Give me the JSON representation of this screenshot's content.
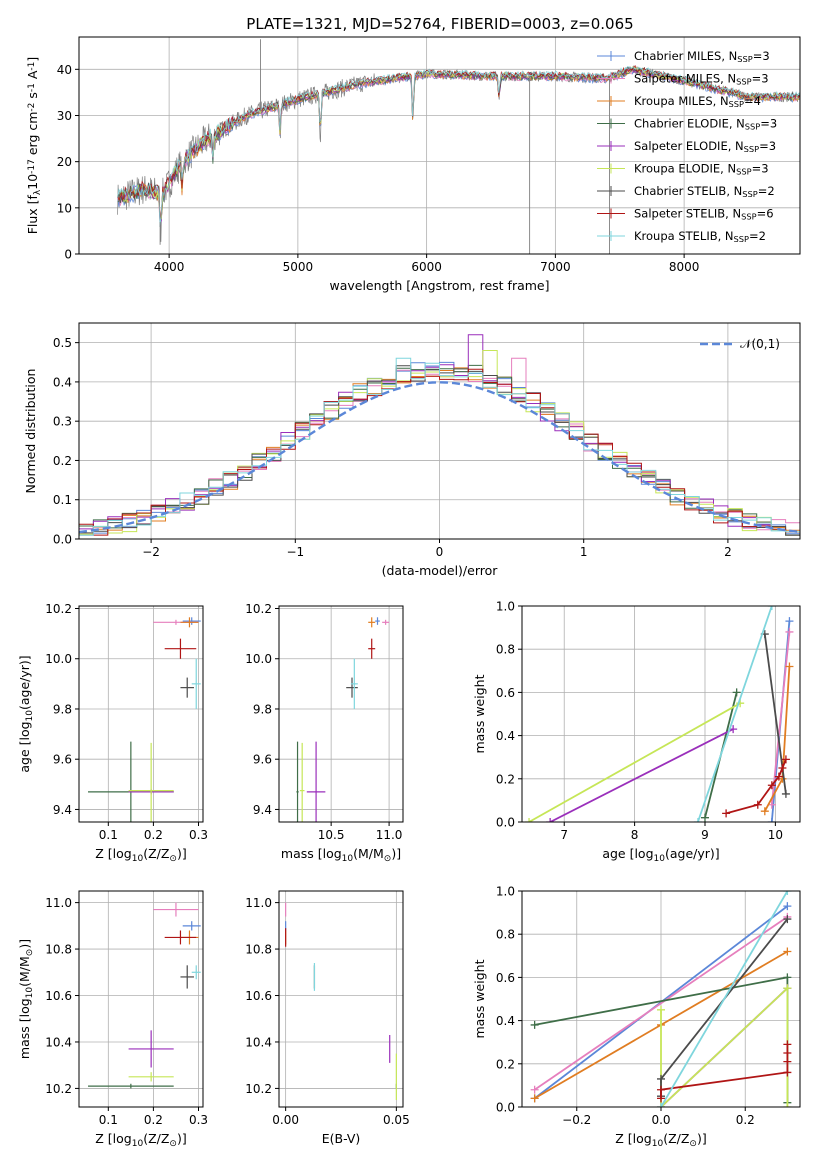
{
  "figure_title": "PLATE=1321, MJD=52764, FIBERID=0003, z=0.065",
  "colors": {
    "Chabrier MILES": "#5b87d8",
    "Salpeter MILES": "#e67fbd",
    "Kroupa MILES": "#e07d22",
    "Chabrier ELODIE": "#3f6e48",
    "Salpeter ELODIE": "#9a2fbb",
    "Kroupa ELODIE": "#c6e657",
    "Chabrier STELIB": "#4b4b4b",
    "Salpeter STELIB": "#b01515",
    "Kroupa STELIB": "#7fd6dd",
    "normal": "#5b87d8",
    "spectrum_gray": "#7f7f7f"
  },
  "chart_data": [
    {
      "id": "spectrum",
      "type": "line",
      "xlabel": "wavelength [Angstrom, rest frame]",
      "ylabel": "Flux [f$_\\lambda$10$^{-17}$ erg cm$^{-2}$ s$^{-1}$ A$^{-1}$]",
      "xlim": [
        3300,
        8900
      ],
      "ylim": [
        0,
        47
      ],
      "xticks": [
        4000,
        5000,
        6000,
        7000,
        8000
      ],
      "yticks": [
        0,
        10,
        20,
        30,
        40
      ],
      "legend_position": "top-right",
      "legend": [
        {
          "model": "Chabrier MILES",
          "label": "Chabrier MILES, N",
          "sub": "SSP",
          "n": "=3"
        },
        {
          "model": "Salpeter MILES",
          "label": "Salpeter MILES, N",
          "sub": "SSP",
          "n": "=3"
        },
        {
          "model": "Kroupa MILES",
          "label": "Kroupa MILES, N",
          "sub": "SSP",
          "n": "=4"
        },
        {
          "model": "Chabrier ELODIE",
          "label": "Chabrier ELODIE, N",
          "sub": "SSP",
          "n": "=3"
        },
        {
          "model": "Salpeter ELODIE",
          "label": "Salpeter ELODIE, N",
          "sub": "SSP",
          "n": "=3"
        },
        {
          "model": "Kroupa ELODIE",
          "label": "Kroupa ELODIE, N",
          "sub": "SSP",
          "n": "=3"
        },
        {
          "model": "Chabrier STELIB",
          "label": "Chabrier STELIB, N",
          "sub": "SSP",
          "n": "=2"
        },
        {
          "model": "Salpeter STELIB",
          "label": "Salpeter STELIB, N",
          "sub": "SSP",
          "n": "=6"
        },
        {
          "model": "Kroupa STELIB",
          "label": "Kroupa STELIB, N",
          "sub": "SSP",
          "n": "=2"
        }
      ],
      "continuum": {
        "x": [
          3600,
          3800,
          3950,
          4100,
          4300,
          4600,
          5000,
          5500,
          6000,
          6500,
          7000,
          7400,
          7600,
          8000,
          8500
        ],
        "y": [
          12,
          14,
          13,
          20,
          25,
          30,
          33.5,
          37,
          39,
          38.5,
          38.5,
          38,
          40,
          37.5,
          34
        ]
      },
      "absorption_lines": [
        {
          "x": 3934,
          "depth": 8
        },
        {
          "x": 4102,
          "depth": 6
        },
        {
          "x": 4340,
          "depth": 5
        },
        {
          "x": 4861,
          "depth": 6
        },
        {
          "x": 5175,
          "depth": 9
        },
        {
          "x": 5893,
          "depth": 10
        },
        {
          "x": 6563,
          "depth": 5
        }
      ],
      "spikes": [
        {
          "x": 3930,
          "y": 2
        },
        {
          "x": 4710,
          "y": 46.5
        },
        {
          "x": 6800,
          "y": 0
        },
        {
          "x": 7420,
          "y": 0
        }
      ]
    },
    {
      "id": "residuals",
      "type": "step",
      "xlabel": "(data-model)/error",
      "ylabel": "Normed distribution",
      "xlim": [
        -2.5,
        2.5
      ],
      "ylim": [
        0,
        0.55
      ],
      "xticks": [
        -2,
        -1,
        0,
        1,
        2
      ],
      "yticks": [
        0.0,
        0.1,
        0.2,
        0.3,
        0.4,
        0.5
      ],
      "legend_position": "top-right",
      "gaussian_label": "$\\mathcal{N}(0,1)$",
      "bin_width": 0.1,
      "peak_bin": {
        "x": 0.2,
        "y": 0.52,
        "model": "Salpeter ELODIE"
      },
      "highest_bins": [
        {
          "x": 0.3,
          "y": 0.48,
          "model": "Kroupa ELODIE"
        },
        {
          "x": 0.5,
          "y": 0.46,
          "model": "Salpeter MILES"
        },
        {
          "x": -0.3,
          "y": 0.46,
          "model": "Kroupa STELIB"
        },
        {
          "x": -0.8,
          "y": 0.35,
          "model": "Salpeter STELIB"
        }
      ]
    },
    {
      "id": "age_vs_Z",
      "type": "scatter",
      "xlabel": "Z [log$_{10}$(Z/Z$_\\odot$)]",
      "ylabel": "age  [log$_{10}$(age/yr)]",
      "xlim": [
        0.035,
        0.31
      ],
      "ylim": [
        9.35,
        10.21
      ],
      "xticks": [
        0.1,
        0.2,
        0.3
      ],
      "yticks": [
        9.4,
        9.6,
        9.8,
        10.0,
        10.2
      ],
      "points": [
        {
          "model": "Chabrier MILES",
          "x": 0.285,
          "y": 10.15,
          "xerr": 0.02,
          "yerr": 0.015
        },
        {
          "model": "Salpeter MILES",
          "x": 0.25,
          "y": 10.145,
          "xerr": 0.05,
          "yerr": 0.01
        },
        {
          "model": "Kroupa MILES",
          "x": 0.28,
          "y": 10.145,
          "xerr": 0.02,
          "yerr": 0.02
        },
        {
          "model": "Chabrier ELODIE",
          "x": 0.15,
          "y": 9.47,
          "xerr": 0.095,
          "yerr": 0.2
        },
        {
          "model": "Salpeter ELODIE",
          "x": 0.195,
          "y": 9.47,
          "xerr": 0.05,
          "yerr": 0.01
        },
        {
          "model": "Kroupa ELODIE",
          "x": 0.195,
          "y": 9.475,
          "xerr": 0.05,
          "yerr": 0.19
        },
        {
          "model": "Chabrier STELIB",
          "x": 0.275,
          "y": 9.885,
          "xerr": 0.015,
          "yerr": 0.04
        },
        {
          "model": "Salpeter STELIB",
          "x": 0.26,
          "y": 10.04,
          "xerr": 0.035,
          "yerr": 0.04
        },
        {
          "model": "Kroupa STELIB",
          "x": 0.295,
          "y": 9.9,
          "xerr": 0.01,
          "yerr": 0.1
        }
      ]
    },
    {
      "id": "age_vs_mass",
      "type": "scatter",
      "xlabel": "mass [log$_{10}$(M/M$_\\odot$)]",
      "ylabel": "",
      "xlim": [
        10.05,
        11.12
      ],
      "ylim": [
        9.35,
        10.21
      ],
      "xticks": [
        10.0,
        10.5,
        11.0
      ],
      "yticks": [
        9.4,
        9.6,
        9.8,
        10.0,
        10.2
      ],
      "points": [
        {
          "model": "Chabrier MILES",
          "x": 10.9,
          "y": 10.15,
          "xerr": 0.02,
          "yerr": 0.015
        },
        {
          "model": "Salpeter MILES",
          "x": 10.97,
          "y": 10.145,
          "xerr": 0.03,
          "yerr": 0.01
        },
        {
          "model": "Kroupa MILES",
          "x": 10.85,
          "y": 10.145,
          "xerr": 0.03,
          "yerr": 0.02
        },
        {
          "model": "Chabrier ELODIE",
          "x": 10.21,
          "y": 9.47,
          "xerr": 0.01,
          "yerr": 0.2
        },
        {
          "model": "Salpeter ELODIE",
          "x": 10.37,
          "y": 9.47,
          "xerr": 0.08,
          "yerr": 0.2
        },
        {
          "model": "Kroupa ELODIE",
          "x": 10.25,
          "y": 9.475,
          "xerr": 0.02,
          "yerr": 0.19
        },
        {
          "model": "Chabrier STELIB",
          "x": 10.68,
          "y": 9.885,
          "xerr": 0.05,
          "yerr": 0.04
        },
        {
          "model": "Salpeter STELIB",
          "x": 10.85,
          "y": 10.04,
          "xerr": 0.03,
          "yerr": 0.04
        },
        {
          "model": "Kroupa STELIB",
          "x": 10.7,
          "y": 9.9,
          "xerr": 0.03,
          "yerr": 0.1
        }
      ]
    },
    {
      "id": "weight_vs_age",
      "type": "line",
      "xlabel": "age  [log$_{10}$(age/yr)]",
      "ylabel": "mass weight",
      "xlim": [
        6.4,
        10.35
      ],
      "ylim": [
        0,
        1.0
      ],
      "xticks": [
        7,
        8,
        9,
        10
      ],
      "yticks": [
        0.0,
        0.2,
        0.4,
        0.6,
        0.8,
        1.0
      ],
      "series": [
        {
          "model": "Chabrier MILES",
          "x": [
            9.95,
            10.2
          ],
          "y": [
            0.0,
            0.93
          ]
        },
        {
          "model": "Salpeter MILES",
          "x": [
            9.95,
            10.2
          ],
          "y": [
            0.08,
            0.88
          ]
        },
        {
          "model": "Kroupa MILES",
          "x": [
            9.85,
            10.1,
            10.2
          ],
          "y": [
            0.05,
            0.2,
            0.72
          ]
        },
        {
          "model": "Chabrier ELODIE",
          "x": [
            9.0,
            9.45
          ],
          "y": [
            0.02,
            0.6
          ]
        },
        {
          "model": "Salpeter ELODIE",
          "x": [
            6.8,
            9.4
          ],
          "y": [
            0.0,
            0.43
          ]
        },
        {
          "model": "Kroupa ELODIE",
          "x": [
            6.5,
            9.5
          ],
          "y": [
            0.0,
            0.55
          ]
        },
        {
          "model": "Chabrier STELIB",
          "x": [
            9.85,
            10.15
          ],
          "y": [
            0.87,
            0.13
          ]
        },
        {
          "model": "Salpeter STELIB",
          "x": [
            9.3,
            9.75,
            9.95,
            10.05,
            10.1,
            10.15
          ],
          "y": [
            0.04,
            0.08,
            0.17,
            0.21,
            0.25,
            0.29
          ]
        },
        {
          "model": "Kroupa STELIB",
          "x": [
            8.9,
            9.95
          ],
          "y": [
            0.0,
            1.0
          ]
        }
      ]
    },
    {
      "id": "mass_vs_Z",
      "type": "scatter",
      "xlabel": "Z [log$_{10}$(Z/Z$_\\odot$)]",
      "ylabel": "mass [log$_{10}$(M/M$_\\odot$)]",
      "xlim": [
        0.035,
        0.31
      ],
      "ylim": [
        10.12,
        11.05
      ],
      "xticks": [
        0.1,
        0.2,
        0.3
      ],
      "yticks": [
        10.2,
        10.4,
        10.6,
        10.8,
        11.0
      ],
      "points": [
        {
          "model": "Chabrier MILES",
          "x": 0.285,
          "y": 10.9,
          "xerr": 0.02,
          "yerr": 0.02
        },
        {
          "model": "Salpeter MILES",
          "x": 0.25,
          "y": 10.97,
          "xerr": 0.05,
          "yerr": 0.03
        },
        {
          "model": "Kroupa MILES",
          "x": 0.28,
          "y": 10.85,
          "xerr": 0.02,
          "yerr": 0.03
        },
        {
          "model": "Chabrier ELODIE",
          "x": 0.15,
          "y": 10.21,
          "xerr": 0.095,
          "yerr": 0.01
        },
        {
          "model": "Salpeter ELODIE",
          "x": 0.195,
          "y": 10.37,
          "xerr": 0.05,
          "yerr": 0.08
        },
        {
          "model": "Kroupa ELODIE",
          "x": 0.195,
          "y": 10.25,
          "xerr": 0.05,
          "yerr": 0.02
        },
        {
          "model": "Chabrier STELIB",
          "x": 0.275,
          "y": 10.68,
          "xerr": 0.015,
          "yerr": 0.05
        },
        {
          "model": "Salpeter STELIB",
          "x": 0.26,
          "y": 10.85,
          "xerr": 0.035,
          "yerr": 0.03
        },
        {
          "model": "Kroupa STELIB",
          "x": 0.295,
          "y": 10.7,
          "xerr": 0.01,
          "yerr": 0.03
        }
      ]
    },
    {
      "id": "mass_vs_ebv",
      "type": "scatter",
      "xlabel": "E(B-V)",
      "ylabel": "",
      "xlim": [
        -0.003,
        0.053
      ],
      "ylim": [
        10.12,
        11.05
      ],
      "xticks": [
        0.0,
        0.05
      ],
      "yticks": [
        10.2,
        10.4,
        10.6,
        10.8,
        11.0
      ],
      "points": [
        {
          "model": "Chabrier MILES",
          "x": 0.0,
          "y": 10.9,
          "xerr": 0,
          "yerr": 0.02
        },
        {
          "model": "Salpeter MILES",
          "x": 0.0,
          "y": 10.97,
          "xerr": 0,
          "yerr": 0.03
        },
        {
          "model": "Kroupa MILES",
          "x": 0.0,
          "y": 10.85,
          "xerr": 0,
          "yerr": 0.03
        },
        {
          "model": "Chabrier ELODIE",
          "x": 0.05,
          "y": 10.21,
          "xerr": 0,
          "yerr": 0.01
        },
        {
          "model": "Salpeter ELODIE",
          "x": 0.047,
          "y": 10.37,
          "xerr": 0,
          "yerr": 0.06
        },
        {
          "model": "Kroupa ELODIE",
          "x": 0.05,
          "y": 10.25,
          "xerr": 0,
          "yerr": 0.1
        },
        {
          "model": "Chabrier STELIB",
          "x": 0.013,
          "y": 10.68,
          "xerr": 0,
          "yerr": 0.05
        },
        {
          "model": "Salpeter STELIB",
          "x": 0.0,
          "y": 10.85,
          "xerr": 0,
          "yerr": 0.04
        },
        {
          "model": "Kroupa STELIB",
          "x": 0.013,
          "y": 10.68,
          "xerr": 0,
          "yerr": 0.06
        }
      ]
    },
    {
      "id": "weight_vs_Z",
      "type": "line",
      "xlabel": "Z [log$_{10}$(Z/Z$_\\odot$)]",
      "ylabel": "mass weight",
      "xlim": [
        -0.33,
        0.33
      ],
      "ylim": [
        0,
        1.0
      ],
      "xticks": [
        -0.2,
        0.0,
        0.2
      ],
      "yticks": [
        0.0,
        0.2,
        0.4,
        0.6,
        0.8,
        1.0
      ],
      "series": [
        {
          "model": "Chabrier MILES",
          "x": [
            -0.3,
            0.3
          ],
          "y": [
            0.04,
            0.93
          ]
        },
        {
          "model": "Salpeter MILES",
          "x": [
            -0.3,
            0.3
          ],
          "y": [
            0.08,
            0.88
          ]
        },
        {
          "model": "Kroupa MILES",
          "x": [
            -0.3,
            0.0,
            0.3
          ],
          "y": [
            0.04,
            0.38,
            0.72
          ]
        },
        {
          "model": "Chabrier ELODIE",
          "x": [
            -0.3,
            0.3,
            0.3
          ],
          "y": [
            0.38,
            0.6,
            0.02
          ]
        },
        {
          "model": "Salpeter ELODIE",
          "x": [
            0.0,
            0.3
          ],
          "y": [
            0.0,
            0.55
          ]
        },
        {
          "model": "Kroupa ELODIE",
          "x": [
            0.0,
            0.0,
            0.3,
            0.3
          ],
          "y": [
            0.45,
            0.0,
            0.55,
            0.0
          ]
        },
        {
          "model": "Chabrier STELIB",
          "x": [
            0.0,
            0.0,
            0.3
          ],
          "y": [
            0.05,
            0.13,
            0.87
          ]
        },
        {
          "model": "Salpeter STELIB",
          "x": [
            0.0,
            0.0,
            0.3,
            0.3,
            0.3,
            0.3
          ],
          "y": [
            0.04,
            0.08,
            0.16,
            0.21,
            0.25,
            0.29
          ]
        },
        {
          "model": "Kroupa STELIB",
          "x": [
            0.0,
            0.3
          ],
          "y": [
            0.0,
            1.0
          ]
        }
      ]
    }
  ]
}
